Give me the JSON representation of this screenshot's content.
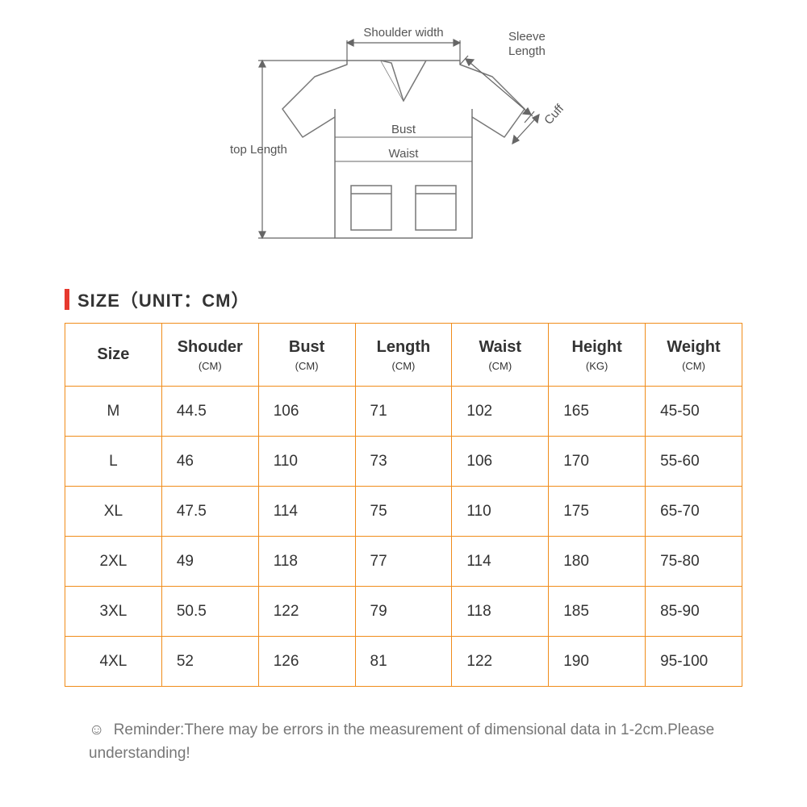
{
  "colors": {
    "accent_red": "#e6392e",
    "table_border": "#f08c1a",
    "text_main": "#333333",
    "text_muted": "#777777",
    "diagram_line": "#777777",
    "background": "#ffffff"
  },
  "diagram_labels": {
    "shoulder_width": "Shoulder width",
    "sleeve_length": "Sleeve",
    "sleeve_length2": "Length",
    "cuff": "Cuff",
    "bust": "Bust",
    "waist": "Waist",
    "top_length": "top Length"
  },
  "title": "SIZE（UNIT：CM）",
  "table": {
    "columns": [
      {
        "label": "Size",
        "unit": ""
      },
      {
        "label": "Shouder",
        "unit": "(CM)"
      },
      {
        "label": "Bust",
        "unit": "(CM)"
      },
      {
        "label": "Length",
        "unit": "(CM)"
      },
      {
        "label": "Waist",
        "unit": "(CM)"
      },
      {
        "label": "Height",
        "unit": "(KG)"
      },
      {
        "label": "Weight",
        "unit": "(CM)"
      }
    ],
    "rows": [
      [
        "M",
        "44.5",
        "106",
        "71",
        "102",
        "165",
        "45-50"
      ],
      [
        "L",
        "46",
        "110",
        "73",
        "106",
        "170",
        "55-60"
      ],
      [
        "XL",
        "47.5",
        "114",
        "75",
        "110",
        "175",
        "65-70"
      ],
      [
        "2XL",
        "49",
        "118",
        "77",
        "114",
        "180",
        "75-80"
      ],
      [
        "3XL",
        "50.5",
        "122",
        "79",
        "118",
        "185",
        "85-90"
      ],
      [
        "4XL",
        "52",
        "126",
        "81",
        "122",
        "190",
        "95-100"
      ]
    ],
    "border_color": "#f08c1a",
    "header_fontsize": 20,
    "cell_fontsize": 19
  },
  "reminder": {
    "icon": "☺",
    "text": "Reminder:There may be errors in the measurement of dimensional data in 1-2cm.Please understanding!"
  }
}
